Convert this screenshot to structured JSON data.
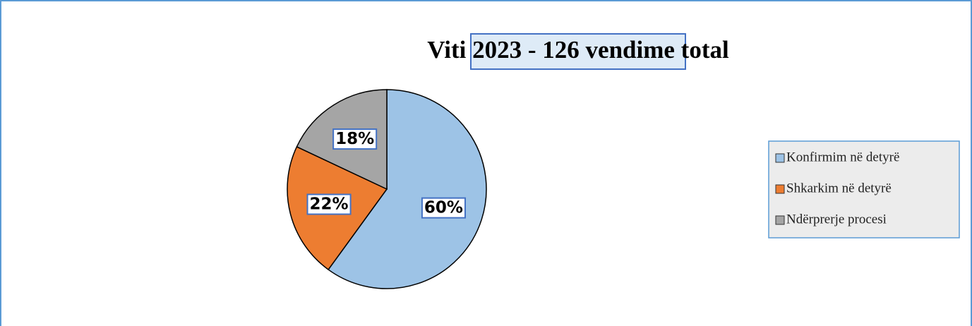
{
  "chart_data": {
    "type": "pie",
    "title": "Viti 2023 - 126 vendime total",
    "categories": [
      "Konfirmim në detyrë",
      "Shkarkim në detyrë",
      "Ndërprerje procesi"
    ],
    "values": [
      60,
      22,
      18
    ],
    "value_labels": [
      "60%",
      "22%",
      "18%"
    ],
    "colors": [
      "#9dc3e6",
      "#ed7d31",
      "#a5a5a5"
    ],
    "legend": "right"
  }
}
